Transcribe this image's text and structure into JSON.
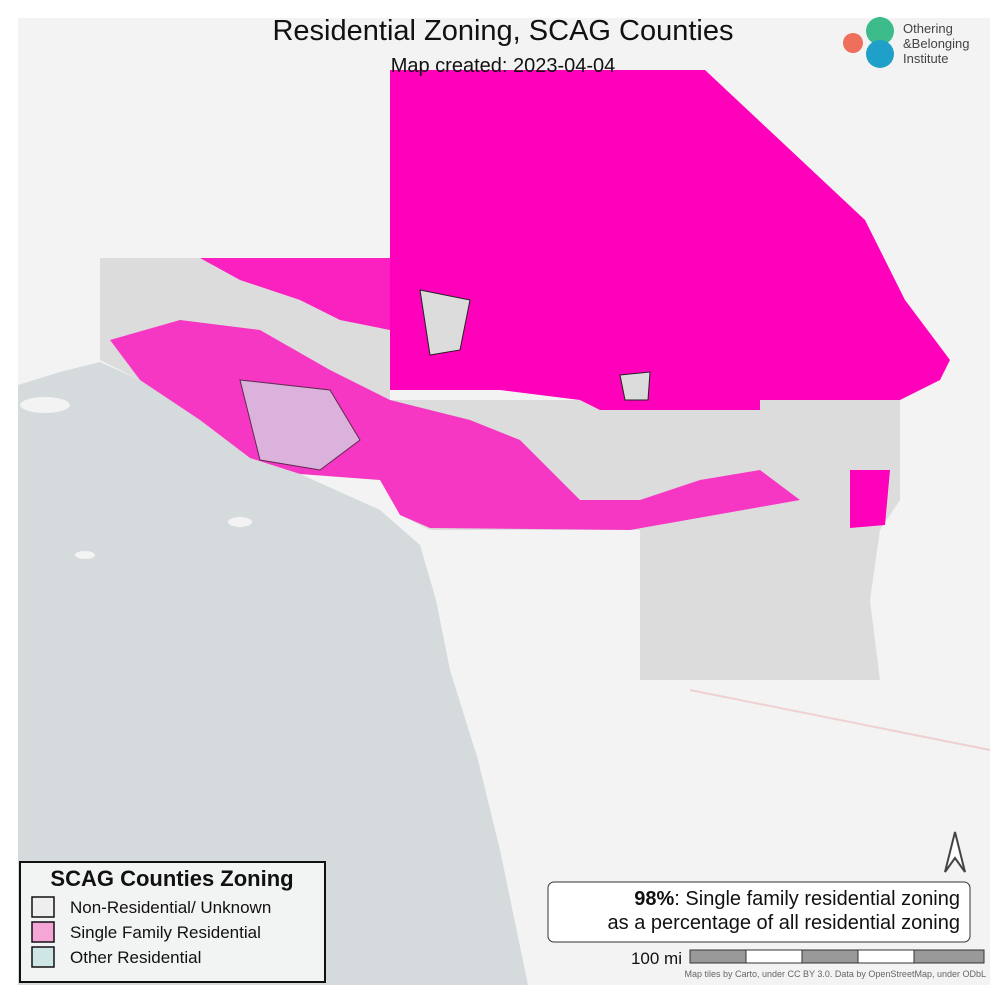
{
  "title": "Residential Zoning, SCAG Counties",
  "subtitle": "Map created: 2023-04-04",
  "logo": {
    "lines": [
      "Othering",
      "&Belonging",
      "Institute"
    ]
  },
  "legend": {
    "title": "SCAG Counties Zoning",
    "items": [
      {
        "label": "Non-Residential/ Unknown",
        "color": "#eeeeee"
      },
      {
        "label": "Single Family Residential",
        "color": "#f5a6d6"
      },
      {
        "label": "Other Residential",
        "color": "#cfe6e6"
      }
    ]
  },
  "annotation": {
    "highlight": "98%",
    "text_lines": [
      ": Single family residential zoning",
      "as a percentage of all residential zoning"
    ]
  },
  "scale": {
    "label": "100 mi"
  },
  "attribution": "Map tiles by Carto, under CC BY 3.0. Data by OpenStreetMap, under ODbL"
}
